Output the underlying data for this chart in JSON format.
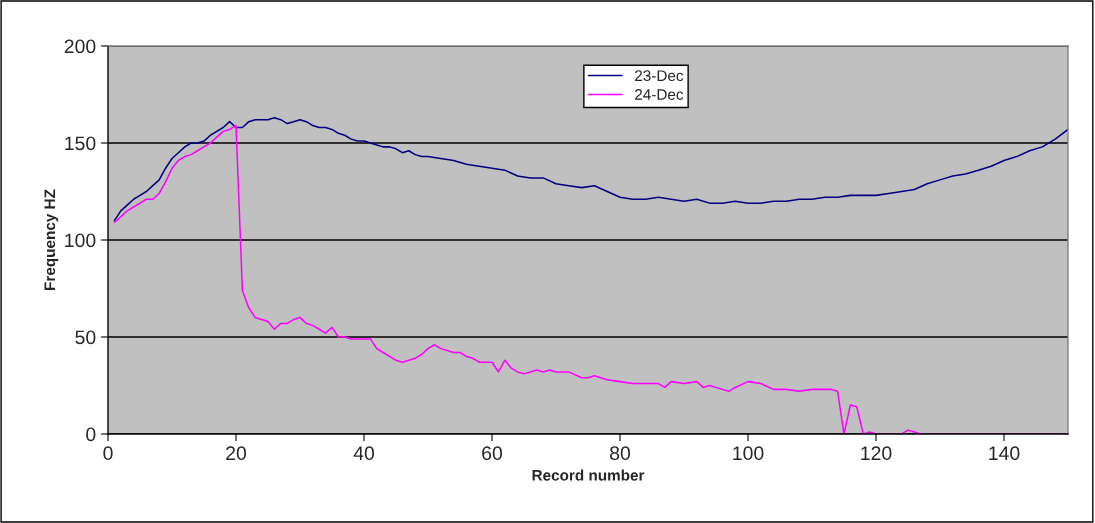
{
  "chart_data": {
    "type": "line",
    "xlabel": "Record number",
    "ylabel": "Frequency HZ",
    "xlim": [
      0,
      150
    ],
    "xticks": [
      0,
      20,
      40,
      60,
      80,
      100,
      120,
      140
    ],
    "ylim": [
      0,
      200
    ],
    "yticks": [
      0,
      50,
      100,
      150,
      200
    ],
    "grid": "y",
    "legend": "top",
    "marker": "none",
    "line_style": "solid",
    "series": [
      {
        "name": "23-Dec",
        "color": "#000080",
        "x": [
          1,
          2,
          3,
          4,
          5,
          6,
          7,
          8,
          9,
          10,
          11,
          12,
          13,
          14,
          15,
          16,
          17,
          18,
          19,
          20,
          21,
          22,
          23,
          24,
          25,
          26,
          27,
          28,
          29,
          30,
          31,
          32,
          33,
          34,
          35,
          36,
          37,
          38,
          39,
          40,
          41,
          42,
          43,
          44,
          45,
          46,
          47,
          48,
          49,
          50,
          52,
          54,
          56,
          58,
          60,
          62,
          64,
          66,
          68,
          70,
          72,
          74,
          76,
          78,
          80,
          82,
          84,
          86,
          88,
          90,
          92,
          94,
          96,
          98,
          100,
          102,
          104,
          106,
          108,
          110,
          112,
          114,
          116,
          118,
          120,
          122,
          124,
          126,
          128,
          130,
          132,
          134,
          136,
          138,
          140,
          142,
          144,
          146,
          148,
          150
        ],
        "values": [
          110,
          115,
          118,
          121,
          123,
          125,
          128,
          131,
          137,
          142,
          145,
          148,
          150,
          150,
          151,
          154,
          156,
          158,
          161,
          158,
          158,
          161,
          162,
          162,
          162,
          163,
          162,
          160,
          161,
          162,
          161,
          159,
          158,
          158,
          157,
          155,
          154,
          152,
          151,
          151,
          150,
          149,
          148,
          148,
          147,
          145,
          146,
          144,
          143,
          143,
          142,
          141,
          139,
          138,
          137,
          136,
          133,
          132,
          132,
          129,
          128,
          127,
          128,
          125,
          122,
          121,
          121,
          122,
          121,
          120,
          121,
          119,
          119,
          120,
          119,
          119,
          120,
          120,
          121,
          121,
          122,
          122,
          123,
          123,
          123,
          124,
          125,
          126,
          129,
          131,
          133,
          134,
          136,
          138,
          141,
          143,
          146,
          148,
          152,
          157
        ]
      },
      {
        "name": "24-Dec",
        "color": "#ff00ff",
        "x": [
          1,
          2,
          3,
          4,
          5,
          6,
          7,
          8,
          9,
          10,
          11,
          12,
          13,
          14,
          15,
          16,
          17,
          18,
          19,
          20,
          21,
          22,
          23,
          24,
          25,
          26,
          27,
          28,
          29,
          30,
          31,
          32,
          33,
          34,
          35,
          36,
          37,
          38,
          40,
          41,
          42,
          43,
          44,
          45,
          46,
          47,
          48,
          49,
          50,
          51,
          52,
          53,
          54,
          55,
          56,
          57,
          58,
          59,
          60,
          61,
          62,
          63,
          64,
          65,
          66,
          67,
          68,
          69,
          70,
          72,
          74,
          75,
          76,
          78,
          80,
          82,
          84,
          86,
          87,
          88,
          90,
          92,
          93,
          94,
          96,
          97,
          98,
          100,
          102,
          104,
          106,
          108,
          110,
          112,
          113,
          114,
          115,
          116,
          117,
          118,
          119,
          120,
          124,
          125,
          126,
          127,
          150
        ],
        "values": [
          109,
          112,
          115,
          117,
          119,
          121,
          121,
          124,
          130,
          137,
          141,
          143,
          144,
          146,
          148,
          150,
          153,
          156,
          157,
          159,
          74,
          65,
          60,
          59,
          58,
          54,
          57,
          57,
          59,
          60,
          57,
          56,
          54,
          52,
          55,
          50,
          50,
          49,
          49,
          49,
          44,
          42,
          40,
          38,
          37,
          38,
          39,
          41,
          44,
          46,
          44,
          43,
          42,
          42,
          40,
          39,
          37,
          37,
          37,
          32,
          38,
          34,
          32,
          31,
          32,
          33,
          32,
          33,
          32,
          32,
          29,
          29,
          30,
          28,
          27,
          26,
          26,
          26,
          24,
          27,
          26,
          27,
          24,
          25,
          23,
          22,
          24,
          27,
          26,
          23,
          23,
          22,
          23,
          23,
          23,
          22,
          0,
          15,
          14,
          0,
          1,
          0,
          0,
          2,
          1,
          0,
          0
        ]
      }
    ]
  }
}
